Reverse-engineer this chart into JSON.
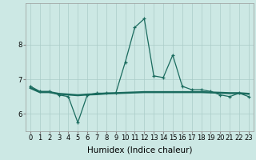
{
  "x": [
    0,
    1,
    2,
    3,
    4,
    5,
    6,
    7,
    8,
    9,
    10,
    11,
    12,
    13,
    14,
    15,
    16,
    17,
    18,
    19,
    20,
    21,
    22,
    23
  ],
  "y_spiky": [
    6.8,
    6.65,
    6.65,
    6.55,
    6.5,
    5.75,
    6.55,
    6.6,
    6.6,
    6.6,
    7.5,
    8.5,
    8.75,
    7.1,
    7.05,
    7.7,
    6.8,
    6.7,
    6.7,
    6.65,
    6.55,
    6.5,
    6.6,
    6.5
  ],
  "y_smooth": [
    6.75,
    6.63,
    6.63,
    6.58,
    6.56,
    6.54,
    6.56,
    6.57,
    6.59,
    6.6,
    6.61,
    6.62,
    6.63,
    6.63,
    6.63,
    6.63,
    6.63,
    6.63,
    6.63,
    6.62,
    6.61,
    6.6,
    6.6,
    6.58
  ],
  "line_color": "#1a6b5e",
  "bg_color": "#cce8e4",
  "grid_color": "#aaccc8",
  "xlabel": "Humidex (Indice chaleur)",
  "ylim": [
    5.5,
    9.2
  ],
  "xlim": [
    -0.5,
    23.5
  ],
  "yticks": [
    6,
    7,
    8
  ],
  "xticks": [
    0,
    1,
    2,
    3,
    4,
    5,
    6,
    7,
    8,
    9,
    10,
    11,
    12,
    13,
    14,
    15,
    16,
    17,
    18,
    19,
    20,
    21,
    22,
    23
  ],
  "tick_fontsize": 6,
  "xlabel_fontsize": 7.5
}
